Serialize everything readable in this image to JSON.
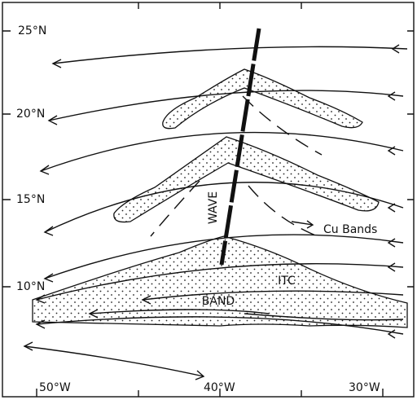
{
  "latitude_labels": [
    "25°N",
    "20°N",
    "15°N",
    "10°N"
  ],
  "longitude_labels": [
    "50°W",
    "40°W",
    "30°W"
  ],
  "feature_labels": {
    "wave": "WAVE",
    "itc": "ITC",
    "band": "BAND",
    "cu_bands": "Cu Bands"
  }
}
